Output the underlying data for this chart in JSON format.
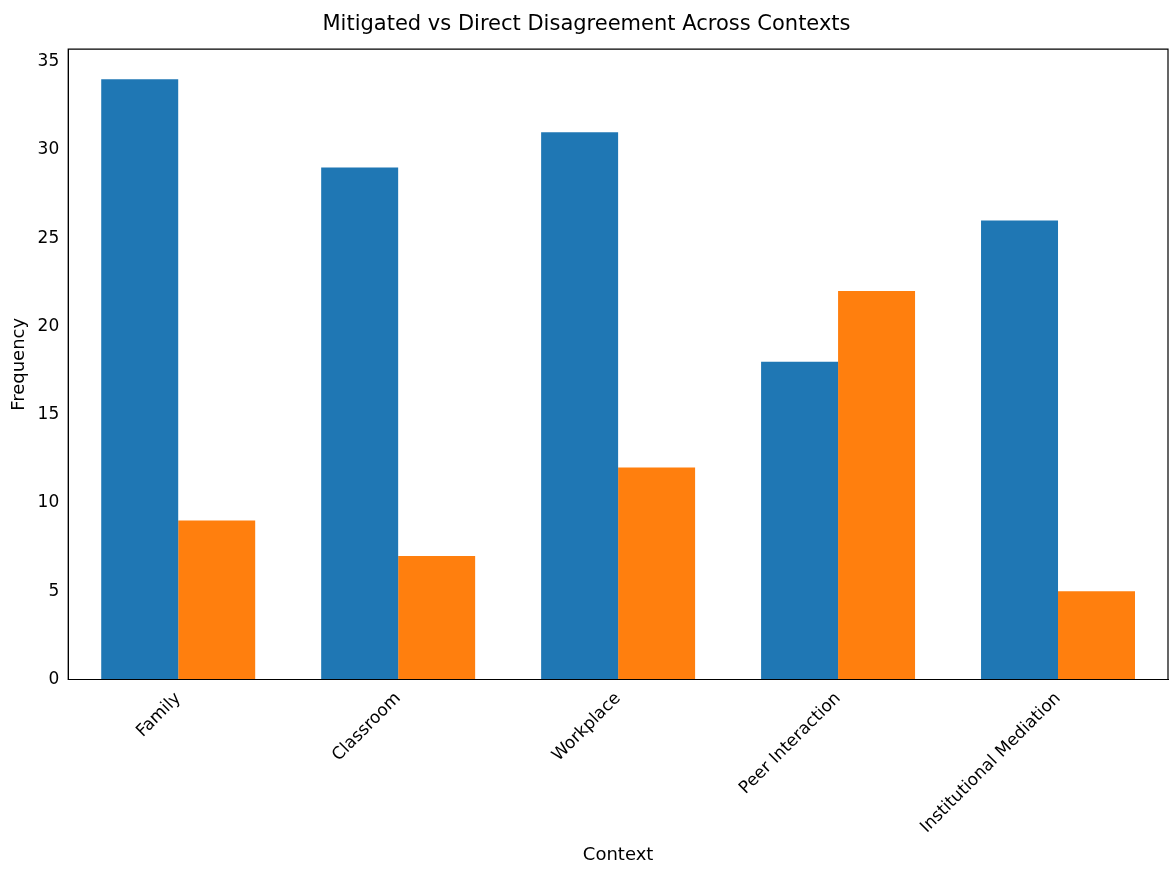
{
  "chart_data": {
    "type": "bar",
    "title": "Mitigated vs Direct Disagreement Across Contexts",
    "xlabel": "Context",
    "ylabel": "Frequency",
    "categories": [
      "Family",
      "Classroom",
      "Workplace",
      "Peer Interaction",
      "Institutional Mediation"
    ],
    "series": [
      {
        "color": "#1f77b4",
        "values": [
          34,
          29,
          31,
          18,
          26
        ]
      },
      {
        "color": "#ff7f0e",
        "values": [
          9,
          7,
          12,
          22,
          5
        ]
      }
    ],
    "ylim": [
      0,
      35.7
    ],
    "yticks": [
      0,
      5,
      10,
      15,
      20,
      25,
      30,
      35
    ],
    "grid": false,
    "legend": false
  }
}
